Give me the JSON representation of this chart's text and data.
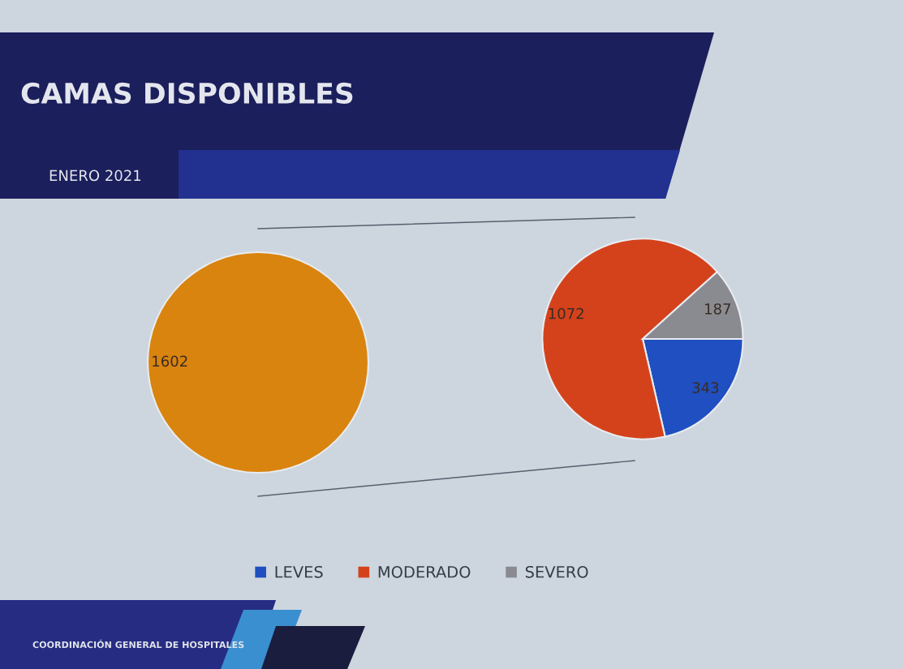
{
  "chart_data": [
    {
      "type": "pie",
      "title": "CAMAS DISPONIBLES",
      "subtitle": "ENERO 2021",
      "categories": [
        null
      ],
      "values": [
        1602
      ],
      "colors": [
        "#d9840f"
      ],
      "data_labels": true,
      "annotations": [
        "COORDINACIÓN GENERAL DE HOSPITALES"
      ]
    },
    {
      "type": "pie",
      "categories": [
        "LEVES",
        "MODERADO",
        "SEVERO"
      ],
      "values": [
        343,
        1072,
        187
      ],
      "colors": [
        "#1f4fc0",
        "#d4421c",
        "#8a8b90"
      ],
      "data_labels": true,
      "legend": "bottom"
    }
  ]
}
